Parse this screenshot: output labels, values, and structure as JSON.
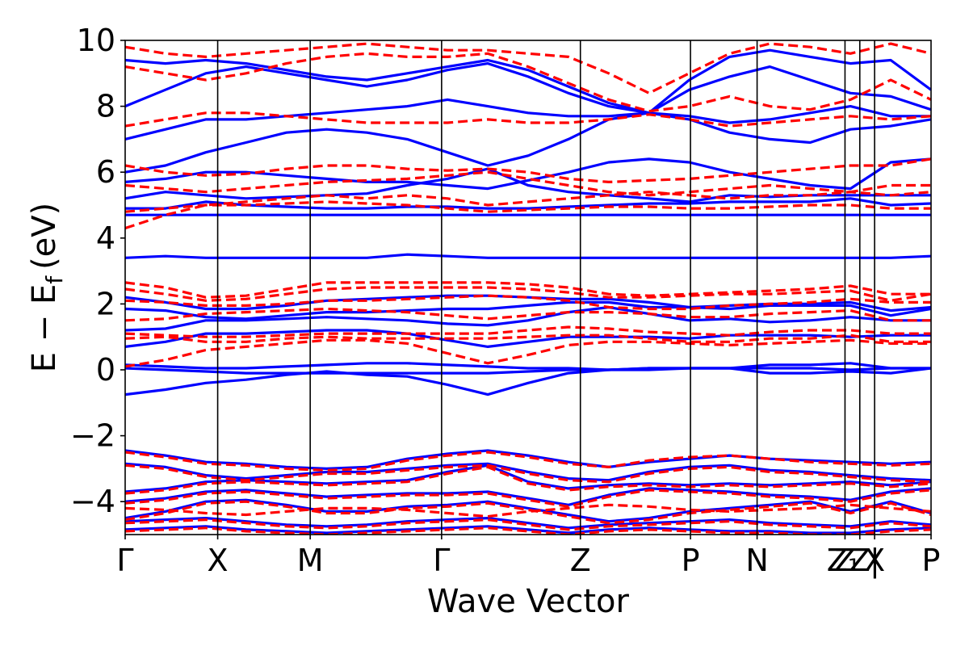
{
  "chart_data": {
    "type": "line",
    "title": "",
    "xlabel": "Wave Vector",
    "ylabel": "E − E",
    "ylabel_subscript": "f",
    "ylabel_unit": "(eV)",
    "ylim": [
      -5,
      10
    ],
    "y_ticks": [
      -4,
      -2,
      0,
      2,
      4,
      6,
      8,
      10
    ],
    "y_tick_labels": [
      "−4",
      "−2",
      "0",
      "2",
      "4",
      "6",
      "8",
      "10"
    ],
    "x_range": [
      0,
      8.71
    ],
    "k_points": [
      {
        "label": "Γ",
        "x": 0
      },
      {
        "label": "X",
        "x": 1.0
      },
      {
        "label": "M",
        "x": 2.0
      },
      {
        "label": "Γ",
        "x": 3.42
      },
      {
        "label": "Z",
        "x": 4.92
      },
      {
        "label": "P",
        "x": 6.11
      },
      {
        "label": "N",
        "x": 6.83
      },
      {
        "label": "Z",
        "x": 7.78
      },
      {
        "label": "Z",
        "x": 7.94
      },
      {
        "label": "X",
        "x": 8.1
      },
      {
        "label": "P",
        "x": 8.71
      }
    ],
    "k_label_overlay": "Z₁ | ",
    "grid": false,
    "series": [
      {
        "color": "#0000ff",
        "style": "solid",
        "bands": [
          [
            -0.75,
            -0.6,
            -0.4,
            -0.3,
            -0.15,
            -0.05,
            -0.15,
            -0.2,
            -0.45,
            -0.75,
            -0.4,
            -0.1,
            0.0,
            0.0,
            0.05,
            0.05,
            0.05,
            0.05,
            0.0,
            0.05,
            0.05
          ],
          [
            0.05,
            0.0,
            -0.05,
            -0.1,
            -0.1,
            -0.1,
            -0.1,
            -0.1,
            -0.1,
            -0.1,
            -0.05,
            0.0,
            0.0,
            0.05,
            0.05,
            0.05,
            -0.1,
            -0.1,
            -0.05,
            -0.1,
            0.05
          ],
          [
            0.15,
            0.1,
            0.05,
            0.05,
            0.1,
            0.15,
            0.2,
            0.2,
            0.15,
            0.1,
            0.05,
            0.05,
            0.0,
            0.05,
            0.05,
            0.05,
            0.15,
            0.15,
            0.2,
            0.05,
            0.05
          ],
          [
            0.7,
            0.85,
            1.1,
            1.1,
            1.15,
            1.2,
            1.2,
            1.1,
            0.9,
            0.7,
            0.85,
            1.0,
            1.0,
            1.0,
            0.95,
            1.05,
            1.05,
            1.05,
            1.0,
            1.05,
            1.05
          ],
          [
            1.2,
            1.25,
            1.5,
            1.5,
            1.55,
            1.6,
            1.55,
            1.5,
            1.4,
            1.35,
            1.5,
            1.75,
            1.9,
            1.7,
            1.5,
            1.55,
            1.45,
            1.5,
            1.6,
            1.5,
            1.5
          ],
          [
            1.85,
            1.8,
            1.6,
            1.55,
            1.65,
            1.75,
            1.75,
            1.8,
            1.85,
            1.85,
            1.95,
            2.05,
            2.05,
            1.9,
            1.9,
            1.85,
            1.95,
            1.95,
            1.95,
            1.65,
            1.85
          ],
          [
            2.2,
            2.05,
            1.85,
            1.85,
            1.95,
            2.1,
            2.15,
            2.2,
            2.25,
            2.25,
            2.2,
            2.15,
            2.15,
            2.05,
            1.9,
            1.95,
            2.0,
            2.0,
            2.05,
            1.8,
            1.9
          ],
          [
            3.4,
            3.45,
            3.4,
            3.4,
            3.4,
            3.4,
            3.4,
            3.5,
            3.45,
            3.4,
            3.4,
            3.4,
            3.4,
            3.4,
            3.4,
            3.4,
            3.4,
            3.4,
            3.4,
            3.4,
            3.45
          ],
          [
            4.7,
            4.7,
            4.7,
            4.7,
            4.7,
            4.7,
            4.7,
            4.7,
            4.7,
            4.7,
            4.7,
            4.7,
            4.7,
            4.7,
            4.7,
            4.7,
            4.7,
            4.7,
            4.7,
            4.7,
            4.7
          ],
          [
            4.9,
            4.9,
            5.1,
            5.0,
            4.95,
            4.9,
            4.9,
            4.95,
            4.95,
            4.9,
            4.9,
            4.95,
            5.0,
            5.05,
            5.05,
            5.1,
            5.1,
            5.1,
            5.2,
            5.0,
            5.05
          ],
          [
            5.2,
            5.4,
            5.3,
            5.2,
            5.25,
            5.3,
            5.35,
            5.6,
            5.8,
            6.1,
            5.6,
            5.4,
            5.3,
            5.2,
            5.1,
            5.3,
            5.25,
            5.3,
            5.3,
            5.3,
            5.3
          ],
          [
            5.7,
            5.8,
            6.0,
            6.0,
            5.9,
            5.8,
            5.7,
            5.7,
            5.6,
            5.5,
            5.75,
            6.0,
            6.3,
            6.4,
            6.3,
            6.0,
            5.8,
            5.6,
            5.5,
            6.3,
            6.4
          ],
          [
            6.0,
            6.2,
            6.6,
            6.9,
            7.2,
            7.3,
            7.2,
            7.0,
            6.6,
            6.2,
            6.5,
            7.0,
            7.6,
            7.8,
            7.6,
            7.2,
            7.0,
            6.9,
            7.3,
            7.4,
            7.6
          ],
          [
            7.0,
            7.3,
            7.6,
            7.6,
            7.7,
            7.8,
            7.9,
            8.0,
            8.2,
            8.0,
            7.8,
            7.7,
            7.7,
            7.8,
            7.7,
            7.5,
            7.6,
            7.8,
            8.0,
            7.7,
            7.7
          ],
          [
            8.0,
            8.5,
            9.0,
            9.2,
            9.0,
            8.8,
            8.6,
            8.8,
            9.1,
            9.3,
            8.9,
            8.4,
            8.0,
            7.8,
            8.5,
            8.9,
            9.2,
            8.8,
            8.4,
            8.3,
            7.9
          ],
          [
            9.4,
            9.3,
            9.4,
            9.3,
            9.1,
            8.9,
            8.8,
            9.0,
            9.2,
            9.4,
            9.1,
            8.6,
            8.1,
            7.8,
            8.8,
            9.5,
            9.7,
            9.5,
            9.3,
            9.4,
            8.5
          ],
          [
            -2.45,
            -2.6,
            -2.8,
            -2.85,
            -2.95,
            -3.0,
            -2.95,
            -2.7,
            -2.55,
            -2.45,
            -2.6,
            -2.8,
            -2.95,
            -2.8,
            -2.7,
            -2.6,
            -2.7,
            -2.75,
            -2.8,
            -2.85,
            -2.8
          ],
          [
            -2.85,
            -2.95,
            -3.2,
            -3.3,
            -3.2,
            -3.1,
            -3.1,
            -3.0,
            -2.9,
            -2.85,
            -3.1,
            -3.3,
            -3.35,
            -3.1,
            -2.95,
            -2.9,
            -3.05,
            -3.1,
            -3.2,
            -3.3,
            -3.35
          ],
          [
            -3.7,
            -3.6,
            -3.4,
            -3.35,
            -3.4,
            -3.45,
            -3.4,
            -3.35,
            -3.1,
            -2.9,
            -3.4,
            -3.6,
            -3.5,
            -3.45,
            -3.5,
            -3.45,
            -3.5,
            -3.45,
            -3.4,
            -3.5,
            -3.4
          ],
          [
            -4.0,
            -3.9,
            -3.7,
            -3.65,
            -3.75,
            -3.85,
            -3.8,
            -3.75,
            -3.75,
            -3.7,
            -3.9,
            -4.1,
            -3.8,
            -3.6,
            -3.65,
            -3.7,
            -3.8,
            -3.85,
            -3.95,
            -3.7,
            -3.6
          ],
          [
            -4.5,
            -4.3,
            -4.0,
            -3.95,
            -4.1,
            -4.3,
            -4.3,
            -4.15,
            -4.1,
            -4.0,
            -4.2,
            -4.4,
            -4.6,
            -4.5,
            -4.3,
            -4.2,
            -4.1,
            -4.0,
            -4.3,
            -4.0,
            -4.35
          ],
          [
            -4.6,
            -4.55,
            -4.5,
            -4.6,
            -4.7,
            -4.75,
            -4.7,
            -4.6,
            -4.55,
            -4.5,
            -4.65,
            -4.8,
            -4.7,
            -4.65,
            -4.6,
            -4.55,
            -4.65,
            -4.7,
            -4.75,
            -4.6,
            -4.7
          ],
          [
            -4.85,
            -4.8,
            -4.75,
            -4.85,
            -4.9,
            -4.95,
            -4.9,
            -4.85,
            -4.8,
            -4.75,
            -4.85,
            -4.95,
            -4.85,
            -4.8,
            -4.85,
            -4.9,
            -4.9,
            -4.95,
            -4.95,
            -4.85,
            -4.8
          ]
        ]
      },
      {
        "color": "#ff0000",
        "style": "dashed",
        "bands": [
          [
            0.1,
            0.3,
            0.6,
            0.7,
            0.8,
            0.9,
            0.9,
            0.8,
            0.5,
            0.2,
            0.45,
            0.75,
            0.85,
            0.85,
            0.8,
            0.75,
            0.8,
            0.85,
            0.9,
            0.8,
            0.8
          ],
          [
            0.95,
            1.0,
            0.85,
            0.85,
            0.95,
            1.0,
            0.95,
            0.95,
            0.95,
            0.95,
            1.0,
            1.05,
            1.05,
            0.95,
            0.85,
            0.85,
            0.95,
            0.95,
            1.05,
            0.85,
            0.85
          ],
          [
            1.1,
            1.05,
            1.0,
            1.0,
            1.05,
            1.1,
            1.1,
            1.1,
            1.1,
            1.1,
            1.2,
            1.3,
            1.25,
            1.15,
            1.1,
            1.05,
            1.15,
            1.2,
            1.2,
            1.1,
            1.1
          ],
          [
            1.5,
            1.55,
            1.7,
            1.75,
            1.8,
            1.85,
            1.8,
            1.75,
            1.65,
            1.55,
            1.65,
            1.75,
            1.75,
            1.7,
            1.6,
            1.6,
            1.7,
            1.75,
            1.8,
            1.5,
            1.5
          ],
          [
            2.1,
            2.05,
            1.95,
            1.95,
            2.0,
            2.1,
            2.1,
            2.15,
            2.2,
            2.25,
            2.2,
            2.1,
            1.9,
            1.85,
            1.85,
            1.95,
            2.0,
            2.05,
            2.15,
            2.05,
            2.05
          ],
          [
            2.45,
            2.3,
            2.1,
            2.15,
            2.3,
            2.45,
            2.5,
            2.5,
            2.5,
            2.5,
            2.45,
            2.35,
            2.2,
            2.2,
            2.25,
            2.3,
            2.3,
            2.35,
            2.4,
            2.1,
            2.3
          ],
          [
            2.65,
            2.5,
            2.2,
            2.25,
            2.45,
            2.65,
            2.65,
            2.65,
            2.65,
            2.65,
            2.6,
            2.5,
            2.3,
            2.25,
            2.3,
            2.35,
            2.4,
            2.45,
            2.55,
            2.3,
            2.3
          ],
          [
            4.3,
            4.7,
            5.0,
            5.1,
            5.2,
            5.3,
            5.2,
            5.3,
            5.2,
            5.0,
            5.1,
            5.2,
            5.3,
            5.4,
            5.3,
            5.2,
            5.3,
            5.3,
            5.4,
            5.3,
            5.4
          ],
          [
            4.8,
            4.9,
            5.0,
            5.0,
            5.05,
            5.1,
            5.05,
            5.0,
            4.9,
            4.8,
            4.85,
            4.9,
            4.95,
            4.95,
            4.9,
            4.9,
            4.95,
            5.0,
            5.0,
            4.9,
            4.9
          ],
          [
            5.6,
            5.5,
            5.4,
            5.5,
            5.6,
            5.7,
            5.75,
            5.8,
            5.9,
            6.0,
            5.8,
            5.6,
            5.4,
            5.3,
            5.4,
            5.5,
            5.6,
            5.5,
            5.4,
            5.6,
            5.6
          ],
          [
            6.2,
            6.0,
            5.9,
            5.95,
            6.1,
            6.2,
            6.2,
            6.1,
            6.05,
            6.1,
            6.0,
            5.8,
            5.7,
            5.75,
            5.8,
            5.9,
            6.0,
            6.1,
            6.2,
            6.2,
            6.4
          ],
          [
            7.4,
            7.6,
            7.8,
            7.8,
            7.7,
            7.6,
            7.5,
            7.5,
            7.5,
            7.6,
            7.5,
            7.5,
            7.6,
            7.75,
            7.6,
            7.4,
            7.5,
            7.6,
            7.7,
            7.6,
            7.7
          ],
          [
            9.2,
            9.0,
            8.8,
            9.0,
            9.3,
            9.5,
            9.6,
            9.5,
            9.5,
            9.6,
            9.2,
            8.7,
            8.2,
            7.85,
            8.0,
            8.3,
            8.0,
            7.9,
            8.2,
            8.8,
            8.2
          ],
          [
            9.8,
            9.6,
            9.5,
            9.6,
            9.7,
            9.8,
            9.9,
            9.8,
            9.7,
            9.7,
            9.6,
            9.5,
            9.0,
            8.4,
            9.0,
            9.6,
            9.9,
            9.8,
            9.6,
            9.9,
            9.6
          ],
          [
            -2.5,
            -2.65,
            -2.85,
            -2.9,
            -3.0,
            -3.05,
            -3.0,
            -2.75,
            -2.6,
            -2.5,
            -2.65,
            -2.85,
            -2.95,
            -2.75,
            -2.65,
            -2.6,
            -2.7,
            -2.8,
            -2.85,
            -2.9,
            -2.85
          ],
          [
            -2.9,
            -3.0,
            -3.25,
            -3.35,
            -3.25,
            -3.15,
            -3.15,
            -3.05,
            -2.95,
            -2.9,
            -3.15,
            -3.35,
            -3.4,
            -3.15,
            -3.0,
            -2.95,
            -3.1,
            -3.15,
            -3.25,
            -3.35,
            -3.4
          ],
          [
            -3.75,
            -3.65,
            -3.45,
            -3.4,
            -3.45,
            -3.5,
            -3.45,
            -3.4,
            -3.15,
            -2.95,
            -3.45,
            -3.65,
            -3.55,
            -3.5,
            -3.55,
            -3.5,
            -3.55,
            -3.5,
            -3.45,
            -3.55,
            -3.45
          ],
          [
            -4.05,
            -3.95,
            -3.75,
            -3.7,
            -3.8,
            -3.9,
            -3.85,
            -3.8,
            -3.8,
            -3.75,
            -3.95,
            -4.15,
            -3.85,
            -3.65,
            -3.7,
            -3.75,
            -3.85,
            -3.9,
            -4.0,
            -3.75,
            -3.65
          ],
          [
            -4.2,
            -4.25,
            -4.35,
            -4.4,
            -4.3,
            -4.2,
            -4.2,
            -4.25,
            -4.35,
            -4.45,
            -4.3,
            -4.2,
            -4.1,
            -4.15,
            -4.25,
            -4.3,
            -4.25,
            -4.2,
            -4.1,
            -4.2,
            -4.3
          ],
          [
            -4.55,
            -4.35,
            -4.05,
            -4.0,
            -4.15,
            -4.35,
            -4.35,
            -4.2,
            -4.15,
            -4.05,
            -4.25,
            -4.45,
            -4.65,
            -4.55,
            -4.35,
            -4.25,
            -4.15,
            -4.05,
            -4.35,
            -4.05,
            -4.4
          ],
          [
            -4.65,
            -4.6,
            -4.55,
            -4.65,
            -4.75,
            -4.8,
            -4.75,
            -4.65,
            -4.6,
            -4.55,
            -4.7,
            -4.85,
            -4.75,
            -4.7,
            -4.65,
            -4.6,
            -4.7,
            -4.75,
            -4.8,
            -4.65,
            -4.75
          ],
          [
            -4.9,
            -4.85,
            -4.8,
            -4.9,
            -4.95,
            -5.0,
            -4.95,
            -4.9,
            -4.85,
            -4.8,
            -4.9,
            -5.0,
            -4.9,
            -4.85,
            -4.9,
            -4.95,
            -4.95,
            -5.0,
            -5.0,
            -4.9,
            -4.85
          ]
        ]
      }
    ]
  }
}
